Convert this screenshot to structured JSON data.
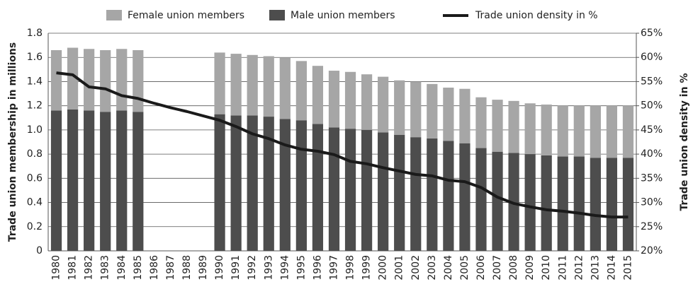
{
  "chart_data": {
    "type": "bar",
    "stacked": true,
    "grid": true,
    "legend": "top",
    "ylabel": "Trade union membership in millions",
    "y2label": "Trade union density in %",
    "categories": [
      "1980",
      "1981",
      "1982",
      "1983",
      "1984",
      "1985",
      "1986",
      "1987",
      "1988",
      "1989",
      "1990",
      "1991",
      "1992",
      "1993",
      "1994",
      "1995",
      "1996",
      "1997",
      "1998",
      "1999",
      "2000",
      "2001",
      "2002",
      "2003",
      "2004",
      "2005",
      "2006",
      "2007",
      "2008",
      "2009",
      "2010",
      "2011",
      "2012",
      "2013",
      "2014",
      "2015"
    ],
    "series": [
      {
        "name": "Female union members",
        "type": "bar",
        "color": "#a6a6a6",
        "values": [
          0.5,
          0.51,
          0.51,
          0.51,
          0.51,
          0.51,
          null,
          null,
          null,
          null,
          0.51,
          0.51,
          0.5,
          0.5,
          0.51,
          0.49,
          0.48,
          0.47,
          0.47,
          0.46,
          0.46,
          0.45,
          0.46,
          0.45,
          0.44,
          0.45,
          0.42,
          0.43,
          0.43,
          0.42,
          0.42,
          0.42,
          0.42,
          0.43,
          0.43,
          0.43
        ]
      },
      {
        "name": "Male union members",
        "type": "bar",
        "color": "#4d4d4d",
        "values": [
          1.16,
          1.17,
          1.16,
          1.15,
          1.16,
          1.15,
          null,
          null,
          null,
          null,
          1.13,
          1.12,
          1.12,
          1.11,
          1.09,
          1.08,
          1.05,
          1.02,
          1.01,
          1.0,
          0.98,
          0.96,
          0.94,
          0.93,
          0.91,
          0.89,
          0.85,
          0.82,
          0.81,
          0.8,
          0.79,
          0.78,
          0.78,
          0.77,
          0.77,
          0.77
        ]
      },
      {
        "name": "Trade union density in %",
        "type": "line",
        "axis": "y2",
        "color": "#1a1a1a",
        "values": [
          56.8,
          56.4,
          53.9,
          53.5,
          52.1,
          51.5,
          50.5,
          49.6,
          48.8,
          47.9,
          47.0,
          45.7,
          44.2,
          43.2,
          41.9,
          41.0,
          40.6,
          39.9,
          38.5,
          38.0,
          37.2,
          36.5,
          35.8,
          35.5,
          34.6,
          34.3,
          33.1,
          31.1,
          29.8,
          29.1,
          28.5,
          28.2,
          27.8,
          27.3,
          27.0,
          27.0
        ]
      }
    ],
    "ylim": [
      0,
      1.8
    ],
    "yticks": [
      0,
      0.2,
      0.4,
      0.6,
      0.8,
      {
        "value": 1,
        "label": "1.0"
      },
      1.2,
      1.4,
      1.6,
      1.8
    ],
    "y2lim": [
      20,
      65
    ],
    "y2ticks": [
      {
        "value": 20,
        "label": "20%"
      },
      {
        "value": 25,
        "label": "25%"
      },
      {
        "value": 30,
        "label": "30%"
      },
      {
        "value": 35,
        "label": "35%"
      },
      {
        "value": 40,
        "label": "40%"
      },
      {
        "value": 45,
        "label": "45%"
      },
      {
        "value": 50,
        "label": "50%"
      },
      {
        "value": 55,
        "label": "55%"
      },
      {
        "value": 60,
        "label": "60%"
      },
      {
        "value": 65,
        "label": "65%"
      }
    ]
  }
}
